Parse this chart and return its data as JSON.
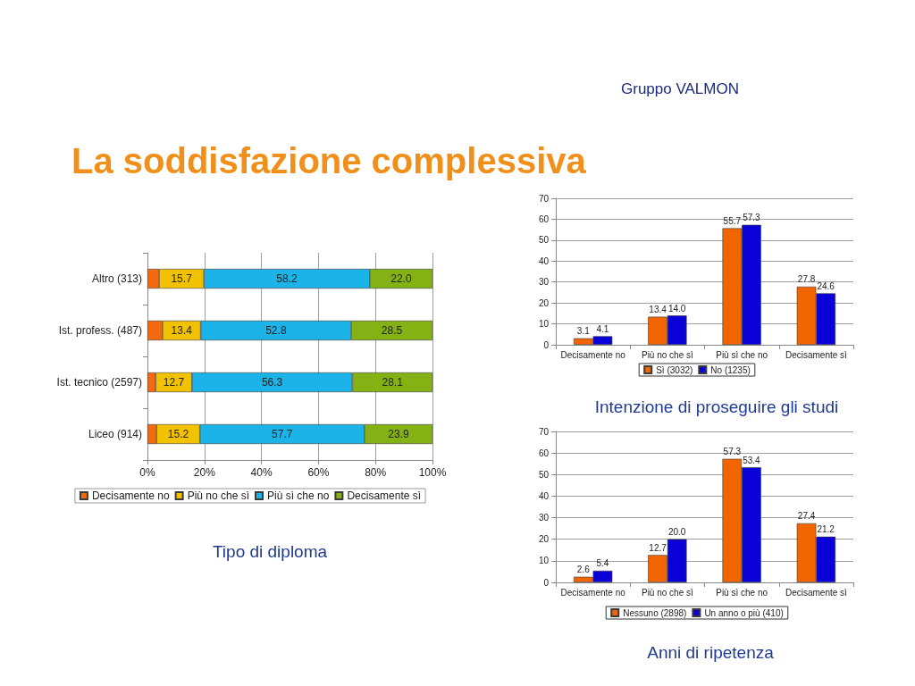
{
  "chart_data": [
    {
      "type": "other",
      "title": "La soddisfazione complessiva",
      "annotations": [
        "Gruppo VALMON"
      ]
    },
    {
      "type": "bar",
      "title": "Tipo di diploma",
      "orientation": "horizontal",
      "stacked": true,
      "categories": [
        "Altro (313)",
        "Ist. profess. (487)",
        "Ist. tecnico (2597)",
        "Liceo (914)"
      ],
      "series": [
        {
          "name": "Decisamente no",
          "color": "#f26a10",
          "values": [
            4.1,
            5.3,
            2.9,
            3.2
          ],
          "value_labels": [
            null,
            null,
            null,
            null
          ]
        },
        {
          "name": "Più no che sì",
          "color": "#f2c200",
          "values": [
            15.7,
            13.4,
            12.7,
            15.2
          ],
          "value_labels": [
            "15.7",
            "13.4",
            "12.7",
            "15.2"
          ]
        },
        {
          "name": "Più sì che no",
          "color": "#1cb4e8",
          "values": [
            58.2,
            52.8,
            56.3,
            57.7
          ],
          "value_labels": [
            "58.2",
            "52.8",
            "56.3",
            "57.7"
          ]
        },
        {
          "name": "Decisamente sì",
          "color": "#84b214",
          "values": [
            22.0,
            28.5,
            28.1,
            23.9
          ],
          "value_labels": [
            "22.0",
            "28.5",
            "28.1",
            "23.9"
          ]
        }
      ],
      "xlim": [
        0,
        100
      ],
      "xticks": [
        {
          "value": 0,
          "label": "0%"
        },
        {
          "value": 20,
          "label": "20%"
        },
        {
          "value": 40,
          "label": "40%"
        },
        {
          "value": 60,
          "label": "60%"
        },
        {
          "value": 80,
          "label": "80%"
        },
        {
          "value": 100,
          "label": "100%"
        }
      ],
      "grid": "x",
      "legend": "bottom"
    },
    {
      "type": "bar",
      "title": "Intenzione di proseguire gli studi",
      "categories": [
        "Decisamente no",
        "Più no che sì",
        "Più sì che no",
        "Decisamente sì"
      ],
      "series": [
        {
          "name": "Sì (3032)",
          "color": "#f26400",
          "values": [
            3.1,
            13.4,
            55.7,
            27.8
          ],
          "value_labels": [
            "3.1",
            "13.4",
            "55.7",
            "27.8"
          ]
        },
        {
          "name": "No (1235)",
          "color": "#0a00d8",
          "values": [
            4.1,
            14.0,
            57.3,
            24.6
          ],
          "value_labels": [
            "4.1",
            "14.0",
            "57.3",
            "24.6"
          ]
        }
      ],
      "ylim": [
        0,
        70
      ],
      "yticks": [
        0,
        10,
        20,
        30,
        40,
        50,
        60,
        70
      ],
      "grid": "y",
      "legend": "bottom"
    },
    {
      "type": "bar",
      "title": "Anni di ripetenza",
      "categories": [
        "Decisamente no",
        "Più no che sì",
        "Più sì che no",
        "Decisamente sì"
      ],
      "series": [
        {
          "name": "Nessuno (2898)",
          "color": "#f26400",
          "values": [
            2.6,
            12.7,
            57.3,
            27.4
          ],
          "value_labels": [
            "2.6",
            "12.7",
            "57.3",
            "27.4"
          ]
        },
        {
          "name": "Un anno o più (410)",
          "color": "#0a00d8",
          "values": [
            5.4,
            20.0,
            53.4,
            21.2
          ],
          "value_labels": [
            "5.4",
            "20.0",
            "53.4",
            "21.2"
          ]
        }
      ],
      "ylim": [
        0,
        70
      ],
      "yticks": [
        0,
        10,
        20,
        30,
        40,
        50,
        60,
        70
      ],
      "grid": "y",
      "legend": "bottom"
    }
  ]
}
